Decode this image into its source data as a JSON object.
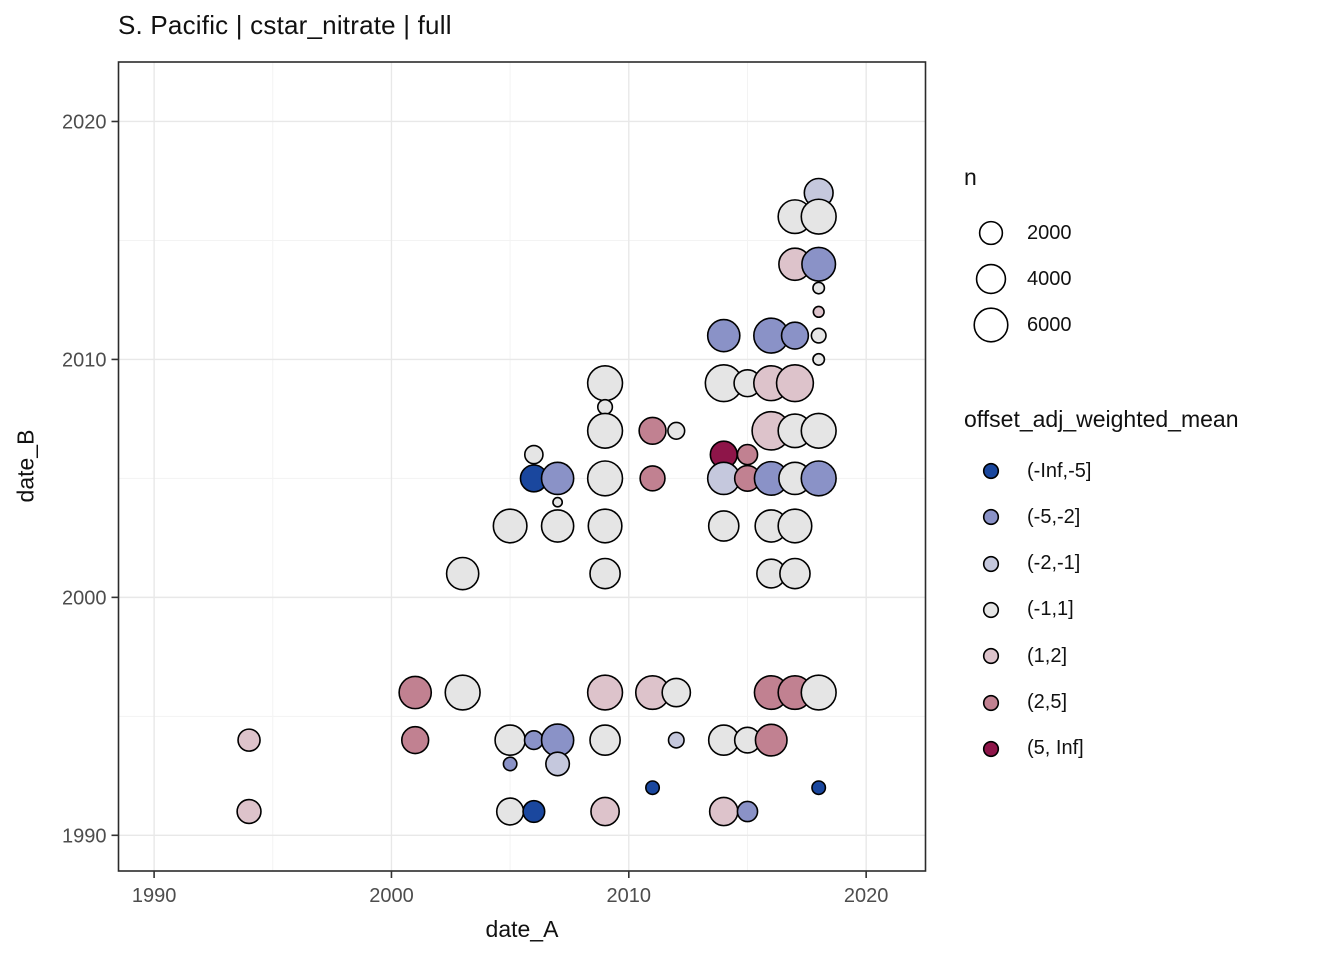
{
  "title": "S. Pacific | cstar_nitrate | full",
  "x_axis": {
    "title": "date_A",
    "ticks": [
      1990,
      2000,
      2010,
      2020
    ],
    "minor_ticks": [
      1995,
      2005,
      2015
    ],
    "domain": [
      1988.5,
      2022.5
    ]
  },
  "y_axis": {
    "title": "date_B",
    "ticks": [
      1990,
      2000,
      2010,
      2020
    ],
    "minor_ticks": [
      1995,
      2005,
      2015
    ],
    "domain": [
      1988.5,
      2022.5
    ]
  },
  "legend_size": {
    "title": "n",
    "items": [
      2000,
      4000,
      6000
    ]
  },
  "legend_color": {
    "title": "offset_adj_weighted_mean",
    "items": [
      {
        "label": "(-Inf,-5]",
        "color": "#1a479e"
      },
      {
        "label": "(-5,-2]",
        "color": "#8a92c7"
      },
      {
        "label": "(-2,-1]",
        "color": "#c5c8dd"
      },
      {
        "label": "(-1,1]",
        "color": "#e5e5e5"
      },
      {
        "label": "(1,2]",
        "color": "#ddc3cb"
      },
      {
        "label": "(2,5]",
        "color": "#c18191"
      },
      {
        "label": "(5, Inf]",
        "color": "#8e1549"
      }
    ]
  },
  "style": {
    "panel_border": "#2b2b2b",
    "grid_major": "#e8e8e8",
    "grid_minor": "#f3f3f3",
    "tick_color": "#333333",
    "tick_label_color": "#4d4d4d",
    "bubble_stroke": "#000000"
  },
  "chart_data": {
    "type": "scatter",
    "subtype": "bubble",
    "title": "S. Pacific | cstar_nitrate | full",
    "xlabel": "date_A",
    "ylabel": "date_B",
    "xlim": [
      1988.5,
      2022.5
    ],
    "ylim": [
      1988.5,
      2022.5
    ],
    "grid": true,
    "size_variable": "n",
    "color_variable": "offset_adj_weighted_mean",
    "points": [
      {
        "x": 1994,
        "y": 1994,
        "n": 1800,
        "bin": "(1,2]"
      },
      {
        "x": 1994,
        "y": 1991,
        "n": 2300,
        "bin": "(1,2]"
      },
      {
        "x": 2001,
        "y": 1996,
        "n": 5350,
        "bin": "(2,5]"
      },
      {
        "x": 2001,
        "y": 1994,
        "n": 3250,
        "bin": "(2,5]"
      },
      {
        "x": 2003,
        "y": 2001,
        "n": 5350,
        "bin": "(-1,1]"
      },
      {
        "x": 2003,
        "y": 1996,
        "n": 6600,
        "bin": "(-1,1]"
      },
      {
        "x": 2005,
        "y": 2003,
        "n": 6000,
        "bin": "(-1,1]"
      },
      {
        "x": 2005,
        "y": 1994,
        "n": 4500,
        "bin": "(-1,1]"
      },
      {
        "x": 2005,
        "y": 1993,
        "n": 270,
        "bin": "(-5,-2]"
      },
      {
        "x": 2005,
        "y": 1991,
        "n": 3250,
        "bin": "(-1,1]"
      },
      {
        "x": 2006,
        "y": 2006,
        "n": 950,
        "bin": "(-1,1]"
      },
      {
        "x": 2006,
        "y": 2005,
        "n": 3250,
        "bin": "(-Inf,-5]"
      },
      {
        "x": 2006,
        "y": 1994,
        "n": 1050,
        "bin": "(-5,-2]"
      },
      {
        "x": 2006,
        "y": 1991,
        "n": 1700,
        "bin": "(-Inf,-5]"
      },
      {
        "x": 2007,
        "y": 2005,
        "n": 5350,
        "bin": "(-5,-2]"
      },
      {
        "x": 2007,
        "y": 2004,
        "n": 15,
        "bin": "(-1,1]"
      },
      {
        "x": 2007,
        "y": 2003,
        "n": 5350,
        "bin": "(-1,1]"
      },
      {
        "x": 2007,
        "y": 1994,
        "n": 5350,
        "bin": "(-5,-2]"
      },
      {
        "x": 2007,
        "y": 1993,
        "n": 2200,
        "bin": "(-2,-1]"
      },
      {
        "x": 2009,
        "y": 2009,
        "n": 6600,
        "bin": "(-1,1]"
      },
      {
        "x": 2009,
        "y": 2008,
        "n": 400,
        "bin": "(-1,1]"
      },
      {
        "x": 2009,
        "y": 2007,
        "n": 6600,
        "bin": "(-1,1]"
      },
      {
        "x": 2009,
        "y": 2005,
        "n": 6600,
        "bin": "(-1,1]"
      },
      {
        "x": 2009,
        "y": 2003,
        "n": 6000,
        "bin": "(-1,1]"
      },
      {
        "x": 2009,
        "y": 2001,
        "n": 4500,
        "bin": "(-1,1]"
      },
      {
        "x": 2009,
        "y": 1996,
        "n": 6600,
        "bin": "(1,2]"
      },
      {
        "x": 2009,
        "y": 1994,
        "n": 4500,
        "bin": "(-1,1]"
      },
      {
        "x": 2009,
        "y": 1991,
        "n": 3750,
        "bin": "(1,2]"
      },
      {
        "x": 2011,
        "y": 2007,
        "n": 3250,
        "bin": "(2,5]"
      },
      {
        "x": 2011,
        "y": 2005,
        "n": 2600,
        "bin": "(2,5]"
      },
      {
        "x": 2011,
        "y": 1996,
        "n": 6000,
        "bin": "(1,2]"
      },
      {
        "x": 2011,
        "y": 1992,
        "n": 270,
        "bin": "(-Inf,-5]"
      },
      {
        "x": 2012,
        "y": 2007,
        "n": 700,
        "bin": "(-1,1]"
      },
      {
        "x": 2012,
        "y": 1996,
        "n": 3750,
        "bin": "(-1,1]"
      },
      {
        "x": 2012,
        "y": 1994,
        "n": 520,
        "bin": "(-2,-1]"
      },
      {
        "x": 2014,
        "y": 2011,
        "n": 5350,
        "bin": "(-5,-2]"
      },
      {
        "x": 2014,
        "y": 2009,
        "n": 7600,
        "bin": "(-1,1]"
      },
      {
        "x": 2014,
        "y": 2006,
        "n": 3250,
        "bin": "(5, Inf]"
      },
      {
        "x": 2014,
        "y": 2005,
        "n": 5350,
        "bin": "(-2,-1]"
      },
      {
        "x": 2014,
        "y": 2003,
        "n": 4500,
        "bin": "(-1,1]"
      },
      {
        "x": 2014,
        "y": 1994,
        "n": 4500,
        "bin": "(-1,1]"
      },
      {
        "x": 2014,
        "y": 1991,
        "n": 3750,
        "bin": "(1,2]"
      },
      {
        "x": 2015,
        "y": 2009,
        "n": 3250,
        "bin": "(-1,1]"
      },
      {
        "x": 2015,
        "y": 2006,
        "n": 1350,
        "bin": "(2,5]"
      },
      {
        "x": 2015,
        "y": 2005,
        "n": 2850,
        "bin": "(2,5]"
      },
      {
        "x": 2015,
        "y": 1994,
        "n": 2850,
        "bin": "(-1,1]"
      },
      {
        "x": 2015,
        "y": 1991,
        "n": 1350,
        "bin": "(-5,-2]"
      },
      {
        "x": 2016,
        "y": 2011,
        "n": 6600,
        "bin": "(-5,-2]"
      },
      {
        "x": 2016,
        "y": 2009,
        "n": 6600,
        "bin": "(1,2]"
      },
      {
        "x": 2016,
        "y": 2007,
        "n": 8400,
        "bin": "(1,2]"
      },
      {
        "x": 2016,
        "y": 2005,
        "n": 6000,
        "bin": "(-5,-2]"
      },
      {
        "x": 2016,
        "y": 2003,
        "n": 5350,
        "bin": "(-1,1]"
      },
      {
        "x": 2016,
        "y": 2001,
        "n": 3950,
        "bin": "(-1,1]"
      },
      {
        "x": 2016,
        "y": 1996,
        "n": 6000,
        "bin": "(2,5]"
      },
      {
        "x": 2016,
        "y": 1994,
        "n": 5100,
        "bin": "(2,5]"
      },
      {
        "x": 2017,
        "y": 2016,
        "n": 6000,
        "bin": "(-1,1]"
      },
      {
        "x": 2017,
        "y": 2014,
        "n": 5350,
        "bin": "(1,2]"
      },
      {
        "x": 2017,
        "y": 2011,
        "n": 3250,
        "bin": "(-5,-2]"
      },
      {
        "x": 2017,
        "y": 2009,
        "n": 7600,
        "bin": "(1,2]"
      },
      {
        "x": 2017,
        "y": 2007,
        "n": 6000,
        "bin": "(-1,1]"
      },
      {
        "x": 2017,
        "y": 2005,
        "n": 5350,
        "bin": "(-1,1]"
      },
      {
        "x": 2017,
        "y": 2003,
        "n": 6000,
        "bin": "(-1,1]"
      },
      {
        "x": 2017,
        "y": 2001,
        "n": 4500,
        "bin": "(-1,1]"
      },
      {
        "x": 2017,
        "y": 1996,
        "n": 6000,
        "bin": "(2,5]"
      },
      {
        "x": 2018,
        "y": 2017,
        "n": 3950,
        "bin": "(-2,-1]"
      },
      {
        "x": 2018,
        "y": 2016,
        "n": 6600,
        "bin": "(-1,1]"
      },
      {
        "x": 2018,
        "y": 2014,
        "n": 6000,
        "bin": "(-5,-2]"
      },
      {
        "x": 2018,
        "y": 2013,
        "n": 110,
        "bin": "(-1,1]"
      },
      {
        "x": 2018,
        "y": 2012,
        "n": 70,
        "bin": "(1,2]"
      },
      {
        "x": 2018,
        "y": 2011,
        "n": 400,
        "bin": "(-1,1]"
      },
      {
        "x": 2018,
        "y": 2010,
        "n": 110,
        "bin": "(-1,1]"
      },
      {
        "x": 2018,
        "y": 2007,
        "n": 6600,
        "bin": "(-1,1]"
      },
      {
        "x": 2018,
        "y": 2005,
        "n": 6600,
        "bin": "(-5,-2]"
      },
      {
        "x": 2018,
        "y": 1996,
        "n": 6600,
        "bin": "(-1,1]"
      },
      {
        "x": 2018,
        "y": 1992,
        "n": 270,
        "bin": "(-Inf,-5]"
      }
    ]
  }
}
